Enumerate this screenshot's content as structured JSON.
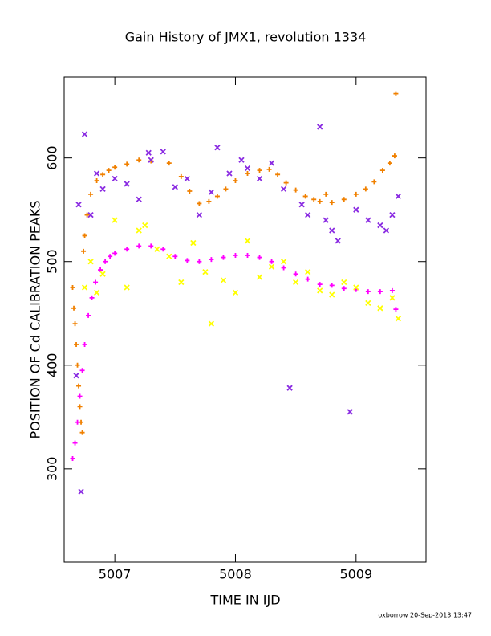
{
  "chart_data": {
    "type": "scatter",
    "title": "Gain History of JMX1, revolution 1334",
    "x_label": "TIME IN IJD",
    "y_label": "POSITION OF Cd CALIBRATION PEAKS",
    "footer": "oxborrow 20-Sep-2013 13:47",
    "xlim": [
      5006.58,
      5009.58
    ],
    "ylim": [
      210,
      678
    ],
    "xticks": [
      5007,
      5008,
      5009
    ],
    "yticks": [
      300,
      400,
      500,
      600
    ],
    "series": [
      {
        "color": "#f08000",
        "marker": "plus",
        "x": [
          5006.65,
          5006.66,
          5006.67,
          5006.68,
          5006.69,
          5006.7,
          5006.71,
          5006.72,
          5006.73,
          5006.74,
          5006.75,
          5006.77,
          5006.8,
          5006.85,
          5006.9,
          5006.95,
          5007.0,
          5007.1,
          5007.2,
          5007.3,
          5007.45,
          5007.55,
          5007.62,
          5007.7,
          5007.78,
          5007.85,
          5007.92,
          5008.0,
          5008.1,
          5008.2,
          5008.28,
          5008.35,
          5008.42,
          5008.5,
          5008.58,
          5008.65,
          5008.7,
          5008.75,
          5008.8,
          5008.9,
          5009.0,
          5009.08,
          5009.15,
          5009.22,
          5009.28,
          5009.32,
          5009.33
        ],
        "values": [
          475,
          455,
          440,
          420,
          400,
          380,
          360,
          345,
          335,
          510,
          525,
          545,
          565,
          578,
          584,
          588,
          591,
          594,
          598,
          597,
          595,
          582,
          568,
          556,
          558,
          563,
          570,
          578,
          585,
          588,
          589,
          584,
          576,
          569,
          563,
          560,
          558,
          565,
          557,
          560,
          565,
          570,
          577,
          588,
          595,
          602,
          662
        ]
      },
      {
        "color": "#ff00ff",
        "marker": "plus",
        "x": [
          5006.65,
          5006.67,
          5006.69,
          5006.71,
          5006.73,
          5006.75,
          5006.78,
          5006.81,
          5006.84,
          5006.88,
          5006.92,
          5006.96,
          5007.0,
          5007.1,
          5007.2,
          5007.3,
          5007.4,
          5007.5,
          5007.6,
          5007.7,
          5007.8,
          5007.9,
          5008.0,
          5008.1,
          5008.2,
          5008.3,
          5008.4,
          5008.5,
          5008.6,
          5008.7,
          5008.8,
          5008.9,
          5009.0,
          5009.1,
          5009.2,
          5009.3,
          5009.33
        ],
        "values": [
          310,
          325,
          345,
          370,
          395,
          420,
          448,
          465,
          480,
          492,
          500,
          505,
          508,
          512,
          515,
          515,
          512,
          505,
          501,
          500,
          502,
          504,
          506,
          506,
          504,
          500,
          494,
          488,
          483,
          478,
          477,
          474,
          473,
          471,
          471,
          472,
          454
        ]
      },
      {
        "color": "#8a2be2",
        "marker": "cross",
        "x": [
          5006.68,
          5006.7,
          5006.72,
          5006.75,
          5006.8,
          5006.85,
          5006.9,
          5007.0,
          5007.1,
          5007.2,
          5007.28,
          5007.3,
          5007.4,
          5007.5,
          5007.6,
          5007.7,
          5007.8,
          5007.85,
          5007.95,
          5008.05,
          5008.1,
          5008.2,
          5008.3,
          5008.4,
          5008.45,
          5008.55,
          5008.6,
          5008.7,
          5008.75,
          5008.8,
          5008.85,
          5008.95,
          5009.0,
          5009.1,
          5009.2,
          5009.25,
          5009.3,
          5009.35
        ],
        "values": [
          390,
          555,
          278,
          623,
          545,
          585,
          570,
          580,
          575,
          560,
          605,
          598,
          606,
          572,
          580,
          545,
          567,
          610,
          585,
          598,
          590,
          580,
          595,
          570,
          378,
          555,
          545,
          630,
          540,
          530,
          520,
          355,
          550,
          540,
          535,
          530,
          545,
          563
        ]
      },
      {
        "color": "#ffff00",
        "marker": "cross",
        "x": [
          5006.75,
          5006.8,
          5006.85,
          5006.9,
          5007.0,
          5007.1,
          5007.2,
          5007.25,
          5007.35,
          5007.45,
          5007.55,
          5007.65,
          5007.75,
          5007.8,
          5007.9,
          5008.0,
          5008.1,
          5008.2,
          5008.3,
          5008.4,
          5008.5,
          5008.6,
          5008.7,
          5008.8,
          5008.9,
          5009.0,
          5009.1,
          5009.2,
          5009.3,
          5009.35
        ],
        "values": [
          475,
          500,
          470,
          488,
          540,
          475,
          530,
          535,
          512,
          505,
          480,
          518,
          490,
          440,
          482,
          470,
          520,
          485,
          495,
          500,
          480,
          490,
          472,
          468,
          480,
          475,
          460,
          455,
          465,
          445
        ]
      }
    ]
  }
}
